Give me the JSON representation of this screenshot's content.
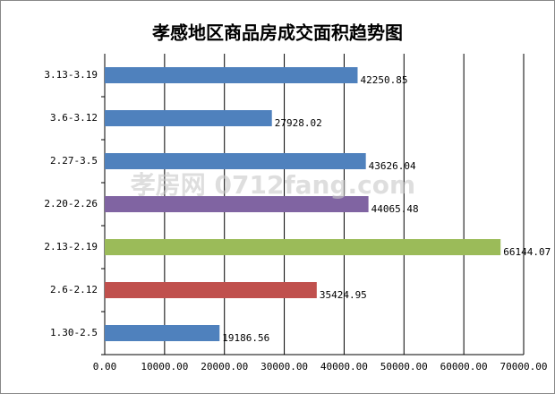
{
  "chart_data": {
    "type": "barh",
    "title": "孝感地区商品房成交面积趋势图",
    "watermark": "孝房网 0712fang.com",
    "categories": [
      "1.30-2.5",
      "2.6-2.12",
      "2.13-2.19",
      "2.20-2.26",
      "2.27-3.5",
      "3.6-3.12",
      "3.13-3.19"
    ],
    "values": [
      19186.56,
      35424.95,
      66144.07,
      44065.48,
      43626.04,
      27928.02,
      42250.85
    ],
    "colors": [
      "#4f81bd",
      "#c0504d",
      "#9bbb59",
      "#8064a2",
      "#4f81bd",
      "#4f81bd",
      "#4f81bd"
    ],
    "xlim": [
      0,
      70000
    ],
    "xticks": [
      {
        "value": 0,
        "label": "0.00"
      },
      {
        "value": 10000,
        "label": "10000.00"
      },
      {
        "value": 20000,
        "label": "20000.00"
      },
      {
        "value": 30000,
        "label": "30000.00"
      },
      {
        "value": 40000,
        "label": "40000.00"
      },
      {
        "value": 50000,
        "label": "50000.00"
      },
      {
        "value": 60000,
        "label": "60000.00"
      },
      {
        "value": 70000,
        "label": "70000.00"
      }
    ],
    "grid": true
  }
}
